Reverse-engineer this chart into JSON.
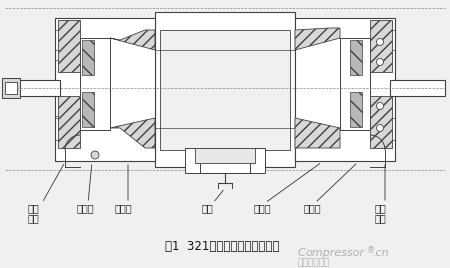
{
  "bg_color": "#f0f0f0",
  "title": "图1  321螺杆压缩机水平剖视图",
  "title_fontsize": 8.5,
  "label_color": "#222222",
  "label_fontsize": 7,
  "line_color": "#404040",
  "hatch_color": "#404040",
  "white": "#ffffff",
  "light_gray": "#d8d8d8",
  "mid_gray": "#b8b8b8",
  "annotations": {
    "left1": [
      "密封",
      "介质"
    ],
    "left2": "缓冲器",
    "left3": "平衡腔",
    "center": "排凝",
    "right1": "平衡腔",
    "right2": "缓冲器",
    "right3": [
      "密封",
      "介质"
    ]
  },
  "watermark_color": "#b0b0b0"
}
